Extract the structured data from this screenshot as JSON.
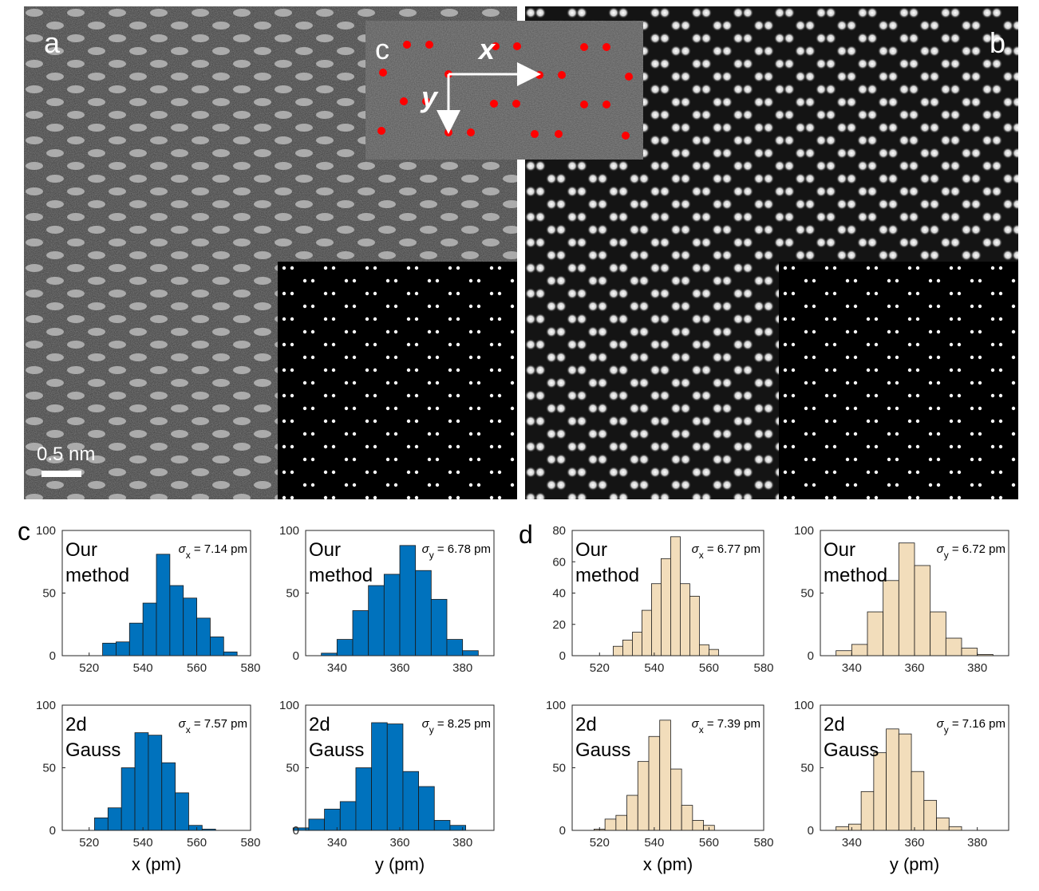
{
  "panels": {
    "a": "a",
    "b": "b",
    "c_inset": "c",
    "c": "c",
    "d": "d"
  },
  "inset": {
    "x_label": "x",
    "y_label": "y"
  },
  "scalebar": {
    "label": "0.5 nm"
  },
  "colors": {
    "blue": "#0072BD",
    "beige": "#F2DDBB",
    "red_marker": "#FF0000"
  },
  "chart_data": [
    {
      "id": "c-x-our",
      "type": "bar",
      "group": "c",
      "method_line1": "Our",
      "method_line2": "method",
      "sigma_symbol": "σ",
      "sigma_sub": "x",
      "sigma_value": " = 7.14 pm",
      "bin_start": 525,
      "bin_width": 5,
      "values": [
        10,
        11,
        26,
        42,
        81,
        56,
        46,
        30,
        15,
        3
      ],
      "xlim": [
        510,
        580
      ],
      "ylim": [
        0,
        100
      ],
      "xticks": [
        520,
        540,
        560,
        580
      ],
      "yticks": [
        0,
        50,
        100
      ],
      "color": "#0072BD",
      "xlabel": ""
    },
    {
      "id": "c-y-our",
      "type": "bar",
      "group": "c",
      "method_line1": "Our",
      "method_line2": "method",
      "sigma_symbol": "σ",
      "sigma_sub": "y",
      "sigma_value": " = 6.78 pm",
      "bin_start": 335,
      "bin_width": 5,
      "values": [
        2,
        13,
        36,
        56,
        65,
        88,
        68,
        45,
        13,
        4
      ],
      "xlim": [
        330,
        390
      ],
      "ylim": [
        0,
        100
      ],
      "xticks": [
        340,
        360,
        380
      ],
      "yticks": [
        0,
        50,
        100
      ],
      "color": "#0072BD",
      "xlabel": ""
    },
    {
      "id": "c-x-gauss",
      "type": "bar",
      "group": "c",
      "method_line1": "2d",
      "method_line2": "Gauss",
      "sigma_symbol": "σ",
      "sigma_sub": "x",
      "sigma_value": " = 7.57 pm",
      "bin_start": 522,
      "bin_width": 5,
      "values": [
        10,
        18,
        50,
        78,
        76,
        54,
        30,
        4,
        1
      ],
      "xlim": [
        510,
        580
      ],
      "ylim": [
        0,
        100
      ],
      "xticks": [
        520,
        540,
        560,
        580
      ],
      "yticks": [
        0,
        50,
        100
      ],
      "color": "#0072BD",
      "xlabel": "x (pm)"
    },
    {
      "id": "c-y-gauss",
      "type": "bar",
      "group": "c",
      "method_line1": "2d",
      "method_line2": "Gauss",
      "sigma_symbol": "σ",
      "sigma_sub": "y",
      "sigma_value": " = 8.25 pm",
      "bin_start": 326,
      "bin_width": 5,
      "values": [
        2,
        9,
        17,
        23,
        50,
        86,
        85,
        47,
        35,
        8,
        4
      ],
      "xlim": [
        330,
        390
      ],
      "ylim": [
        0,
        100
      ],
      "xticks": [
        340,
        360,
        380
      ],
      "yticks": [
        0,
        50,
        100
      ],
      "color": "#0072BD",
      "xlabel": "y (pm)"
    },
    {
      "id": "d-x-our",
      "type": "bar",
      "group": "d",
      "method_line1": "Our",
      "method_line2": "method",
      "sigma_symbol": "σ",
      "sigma_sub": "x",
      "sigma_value": " = 6.77 pm",
      "bin_start": 525,
      "bin_width": 3.5,
      "values": [
        6,
        10,
        15,
        29,
        46,
        62,
        76,
        46,
        38,
        7,
        4
      ],
      "xlim": [
        510,
        580
      ],
      "ylim": [
        0,
        80
      ],
      "xticks": [
        520,
        540,
        560,
        580
      ],
      "yticks": [
        0,
        20,
        40,
        60,
        80
      ],
      "color": "#F2DDBB",
      "xlabel": ""
    },
    {
      "id": "d-y-our",
      "type": "bar",
      "group": "d",
      "method_line1": "Our",
      "method_line2": "method",
      "sigma_symbol": "σ",
      "sigma_sub": "y",
      "sigma_value": " = 6.72 pm",
      "bin_start": 335,
      "bin_width": 5,
      "values": [
        4,
        9,
        35,
        60,
        90,
        72,
        35,
        14,
        6,
        1
      ],
      "xlim": [
        330,
        390
      ],
      "ylim": [
        0,
        100
      ],
      "xticks": [
        340,
        360,
        380
      ],
      "yticks": [
        0,
        50,
        100
      ],
      "color": "#F2DDBB",
      "xlabel": ""
    },
    {
      "id": "d-x-gauss",
      "type": "bar",
      "group": "d",
      "method_line1": "2d",
      "method_line2": "Gauss",
      "sigma_symbol": "σ",
      "sigma_sub": "x",
      "sigma_value": " = 7.39 pm",
      "bin_start": 518,
      "bin_width": 4,
      "values": [
        1,
        9,
        12,
        28,
        55,
        75,
        88,
        49,
        20,
        8,
        4
      ],
      "xlim": [
        510,
        580
      ],
      "ylim": [
        0,
        100
      ],
      "xticks": [
        520,
        540,
        560,
        580
      ],
      "yticks": [
        0,
        50,
        100
      ],
      "color": "#F2DDBB",
      "xlabel": "x (pm)"
    },
    {
      "id": "d-y-gauss",
      "type": "bar",
      "group": "d",
      "method_line1": "2d",
      "method_line2": "Gauss",
      "sigma_symbol": "σ",
      "sigma_sub": "y",
      "sigma_value": " = 7.16 pm",
      "bin_start": 335,
      "bin_width": 4,
      "values": [
        3,
        5,
        31,
        62,
        81,
        77,
        47,
        24,
        10,
        3
      ],
      "xlim": [
        330,
        390
      ],
      "ylim": [
        0,
        100
      ],
      "xticks": [
        340,
        360,
        380
      ],
      "yticks": [
        0,
        50,
        100
      ],
      "color": "#F2DDBB",
      "xlabel": "y (pm)"
    }
  ]
}
